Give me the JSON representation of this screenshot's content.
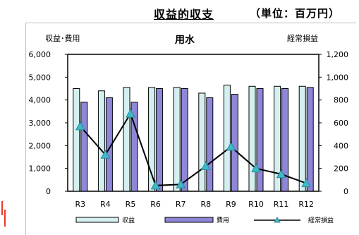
{
  "header": {
    "title": "収益的収支",
    "unit": "（単位：百万円）"
  },
  "chart_data": {
    "type": "bar",
    "title": "用水",
    "ylabel": "収益･費用",
    "y2label": "経常損益",
    "categories": [
      "R3",
      "R4",
      "R5",
      "R6",
      "R7",
      "R8",
      "R9",
      "R10",
      "R11",
      "R12"
    ],
    "ylim": [
      0,
      6000
    ],
    "y2lim": [
      0,
      1200
    ],
    "yticks": [
      "0",
      "1,000",
      "2,000",
      "3,000",
      "4,000",
      "5,000",
      "6,000"
    ],
    "y2ticks": [
      "0",
      "200",
      "400",
      "600",
      "800",
      "1,000",
      "1,200"
    ],
    "series": [
      {
        "name": "収益",
        "type": "bar",
        "axis": "left",
        "values": [
          4500,
          4400,
          4550,
          4550,
          4550,
          4300,
          4650,
          4600,
          4600,
          4600
        ],
        "color": "#d4efef"
      },
      {
        "name": "費用",
        "type": "bar",
        "axis": "left",
        "values": [
          3900,
          4100,
          3900,
          4500,
          4500,
          4100,
          4250,
          4500,
          4500,
          4550
        ],
        "color": "#8e86d6"
      },
      {
        "name": "経常損益",
        "type": "line",
        "axis": "right",
        "values": [
          570,
          320,
          680,
          50,
          60,
          220,
          390,
          200,
          150,
          70
        ],
        "color": "#000000",
        "marker_color": "#3fb9c9"
      }
    ],
    "legend": "bottom",
    "grid": false
  }
}
